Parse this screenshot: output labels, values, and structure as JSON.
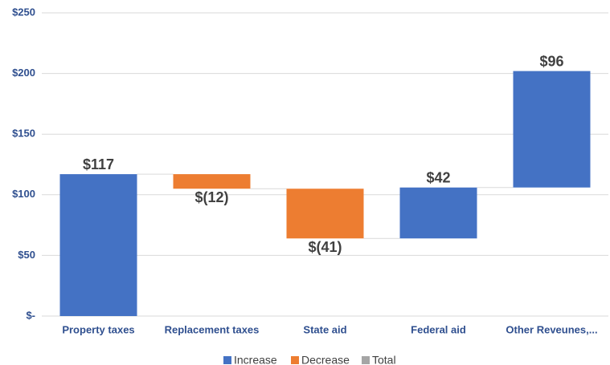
{
  "chart_data": {
    "type": "waterfall",
    "categories": [
      "Property taxes",
      "Replacement taxes",
      "State aid",
      "Federal aid",
      "Other Reveunes,..."
    ],
    "values": [
      117,
      -12,
      -41,
      42,
      96
    ],
    "value_labels": [
      "$117",
      "$(12)",
      "$(41)",
      "$42",
      "$96"
    ],
    "legend": [
      {
        "name": "Increase",
        "color": "#4472c4"
      },
      {
        "name": "Decrease",
        "color": "#ed7d31"
      },
      {
        "name": "Total",
        "color": "#a5a5a5"
      }
    ],
    "ylim": [
      0,
      250
    ],
    "yticks": [
      {
        "value": 0,
        "label": "$-"
      },
      {
        "value": 50,
        "label": "$50"
      },
      {
        "value": 100,
        "label": "$100"
      },
      {
        "value": 150,
        "label": "$150"
      },
      {
        "value": 200,
        "label": "$200"
      },
      {
        "value": 250,
        "label": "$250"
      }
    ],
    "grid": true
  }
}
